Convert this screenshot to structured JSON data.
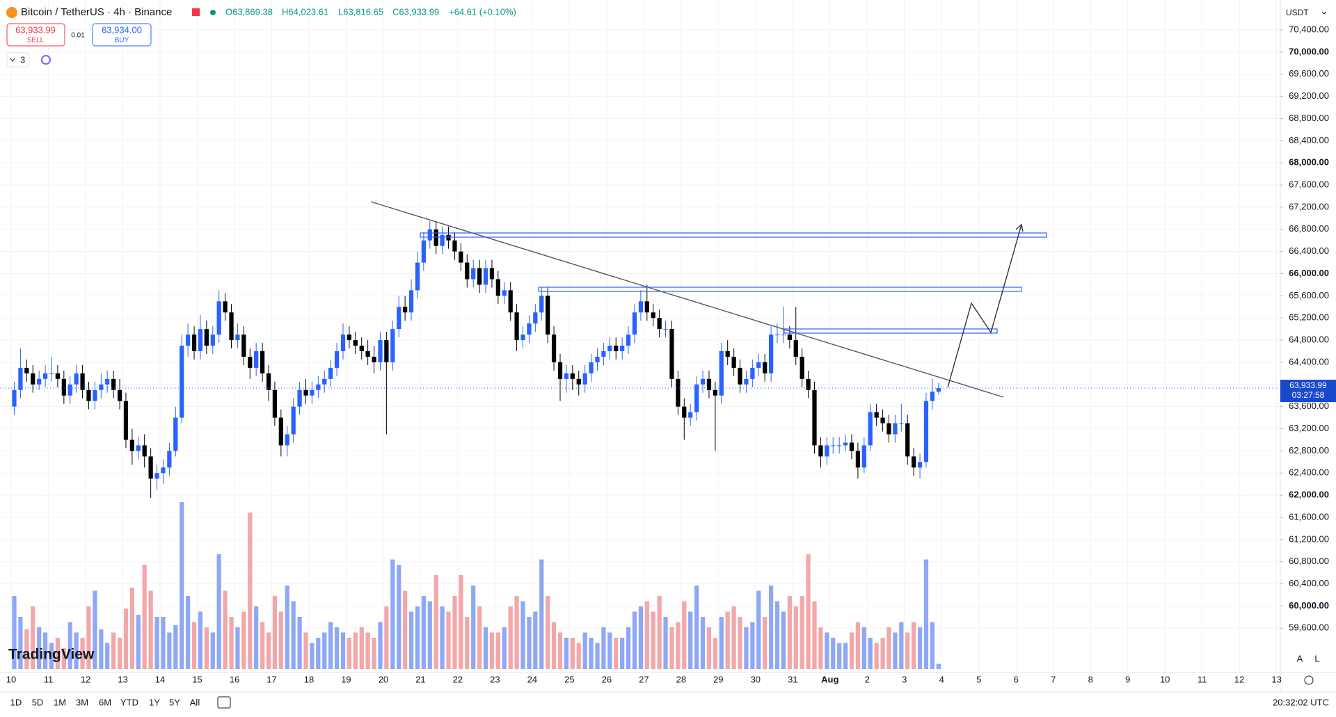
{
  "header": {
    "symbol": "Bitcoin / TetherUS · 4h · Binance",
    "open": "O63,869.38",
    "high": "H64,023.61",
    "low": "L63,816.65",
    "close": "C63,933.99",
    "change": "+64.61 (+0.10%)"
  },
  "trade": {
    "sell_price": "63,933.99",
    "sell_label": "SELL",
    "spread": "0.01",
    "buy_price": "63,934.00",
    "buy_label": "BUY"
  },
  "indicators_count": "3",
  "currency": "USDT",
  "price_tag": {
    "value": 63933.99,
    "label": "63,933.99",
    "countdown": "03:27:58"
  },
  "range_buttons": [
    "1D",
    "5D",
    "1M",
    "3M",
    "6M",
    "YTD",
    "1Y",
    "5Y",
    "All"
  ],
  "clock": "20:32:02 UTC",
  "scale_buttons": [
    "A",
    "L"
  ],
  "brand": "TradingView",
  "chart_data": {
    "type": "candlestick",
    "up_color": "#2962ff",
    "down_color": "#000000",
    "volume_up_color": "#8fa8f5",
    "volume_down_color": "#f2a7a9",
    "grid": true,
    "x": [
      10.083,
      10.25,
      10.417,
      10.583,
      10.75,
      10.917,
      11.083,
      11.25,
      11.417,
      11.583,
      11.75,
      11.917,
      12.083,
      12.25,
      12.417,
      12.583,
      12.75,
      12.917,
      13.083,
      13.25,
      13.417,
      13.583,
      13.75,
      13.917,
      14.083,
      14.25,
      14.417,
      14.583,
      14.75,
      14.917,
      15.083,
      15.25,
      15.417,
      15.583,
      15.75,
      15.917,
      16.083,
      16.25,
      16.417,
      16.583,
      16.75,
      16.917,
      17.083,
      17.25,
      17.417,
      17.583,
      17.75,
      17.917,
      18.083,
      18.25,
      18.417,
      18.583,
      18.75,
      18.917,
      19.083,
      19.25,
      19.417,
      19.583,
      19.75,
      19.917,
      20.083,
      20.25,
      20.417,
      20.583,
      20.75,
      20.917,
      21.083,
      21.25,
      21.417,
      21.583,
      21.75,
      21.917,
      22.083,
      22.25,
      22.417,
      22.583,
      22.75,
      22.917,
      23.083,
      23.25,
      23.417,
      23.583,
      23.75,
      23.917,
      24.083,
      24.25,
      24.417,
      24.583,
      24.75,
      24.917,
      25.083,
      25.25,
      25.417,
      25.583,
      25.75,
      25.917,
      26.083,
      26.25,
      26.417,
      26.583,
      26.75,
      26.917,
      27.083,
      27.25,
      27.417,
      27.583,
      27.75,
      27.917,
      28.083,
      28.25,
      28.417,
      28.583,
      28.75,
      28.917,
      29.083,
      29.25,
      29.417,
      29.583,
      29.75,
      29.917,
      30.083,
      30.25,
      30.417,
      30.583,
      30.75,
      30.917,
      31.083,
      31.25,
      31.417,
      31.583,
      31.75,
      31.917,
      32.083,
      32.25,
      32.417,
      32.583,
      32.75,
      32.917,
      33.083,
      33.25,
      33.417,
      33.583,
      33.75,
      33.917,
      34.083,
      34.25,
      34.417,
      34.583,
      34.75,
      34.917
    ],
    "open": [
      63600,
      63900,
      64300,
      64200,
      64000,
      64100,
      64200,
      64200,
      64100,
      63800,
      64000,
      64200,
      63900,
      63700,
      63900,
      64000,
      64100,
      63900,
      63700,
      63000,
      62800,
      62900,
      62700,
      62300,
      62400,
      62500,
      62800,
      63400,
      64700,
      64900,
      64600,
      65000,
      64700,
      64900,
      65500,
      65300,
      64800,
      64900,
      64500,
      64300,
      64600,
      64200,
      63900,
      63400,
      62900,
      63100,
      63600,
      63900,
      63800,
      63900,
      64000,
      64100,
      64300,
      64600,
      64900,
      64800,
      64700,
      64600,
      64500,
      64400,
      64800,
      64400,
      65000,
      65400,
      65300,
      65700,
      66200,
      66600,
      66800,
      66500,
      66700,
      66600,
      66400,
      66200,
      65900,
      66100,
      65800,
      66100,
      65900,
      65600,
      65700,
      65300,
      64800,
      64900,
      65100,
      65300,
      65600,
      64900,
      64400,
      64100,
      64200,
      64100,
      64000,
      64200,
      64400,
      64500,
      64600,
      64700,
      64600,
      64700,
      64900,
      65300,
      65500,
      65300,
      65200,
      65000,
      65000,
      64100,
      63600,
      63400,
      63500,
      64000,
      64100,
      63900,
      63800,
      64600,
      64500,
      64300,
      64000,
      64100,
      64300,
      64400,
      64200,
      64900,
      64900,
      64900,
      64800,
      64500,
      64100,
      63900,
      62900,
      62700,
      62900,
      62900,
      62900,
      62950,
      62800,
      62500,
      62900,
      63500,
      63400,
      63300,
      63100,
      63300,
      63300,
      62700,
      62500,
      62600,
      63700,
      63869.38
    ],
    "high": [
      64050,
      64650,
      64450,
      64350,
      64250,
      64350,
      64500,
      64350,
      64250,
      64150,
      64350,
      64350,
      64050,
      64050,
      64200,
      64250,
      64250,
      64100,
      63850,
      63200,
      63050,
      63100,
      62850,
      62550,
      62650,
      62950,
      63600,
      64900,
      65100,
      65050,
      65250,
      65150,
      65050,
      65700,
      65650,
      65450,
      65100,
      65050,
      64650,
      64750,
      64750,
      64350,
      64050,
      63550,
      63250,
      63750,
      64050,
      64100,
      64050,
      64150,
      64250,
      64450,
      64750,
      65100,
      65050,
      64950,
      64850,
      64800,
      64700,
      64950,
      64950,
      65150,
      65600,
      65600,
      65900,
      66400,
      66750,
      66950,
      66950,
      66850,
      66850,
      66750,
      66550,
      66350,
      66250,
      66250,
      66250,
      66250,
      66050,
      65850,
      65850,
      65450,
      65050,
      65250,
      65450,
      65750,
      65750,
      65050,
      64550,
      64350,
      64350,
      64250,
      64350,
      64550,
      64650,
      64750,
      64850,
      64850,
      64850,
      65050,
      65450,
      65700,
      65800,
      65450,
      65350,
      65150,
      65150,
      64250,
      63750,
      63650,
      64150,
      64250,
      64250,
      64050,
      64750,
      64800,
      64650,
      64450,
      64250,
      64450,
      64550,
      64550,
      65050,
      65100,
      65400,
      65050,
      65400,
      64650,
      64250,
      64050,
      63050,
      63050,
      63050,
      63050,
      63100,
      63100,
      62950,
      63050,
      63650,
      63650,
      63550,
      63450,
      63450,
      63650,
      63450,
      62850,
      62750,
      63850,
      64100,
      64023.61
    ],
    "low": [
      63450,
      63750,
      64050,
      63850,
      63900,
      63950,
      64050,
      63950,
      63650,
      63650,
      63850,
      63750,
      63550,
      63550,
      63750,
      63850,
      63750,
      63550,
      62850,
      62550,
      62650,
      62500,
      61950,
      62100,
      62200,
      62350,
      62700,
      63300,
      64500,
      64450,
      64450,
      64550,
      64550,
      64750,
      65150,
      64650,
      64650,
      64350,
      64100,
      64150,
      64050,
      63700,
      63250,
      62700,
      62700,
      62950,
      63450,
      63650,
      63650,
      63750,
      63850,
      63950,
      64150,
      64450,
      64650,
      64550,
      64450,
      64350,
      64200,
      64250,
      63100,
      64250,
      64850,
      65150,
      65150,
      65550,
      66050,
      66450,
      66350,
      66350,
      66450,
      66250,
      66050,
      65750,
      65750,
      65650,
      65650,
      65750,
      65450,
      65450,
      65150,
      64600,
      64650,
      64750,
      64950,
      65150,
      64750,
      64250,
      63700,
      63850,
      63900,
      63800,
      63850,
      64050,
      64250,
      64350,
      64450,
      64450,
      64450,
      64550,
      64750,
      65150,
      65150,
      65050,
      64850,
      64850,
      63950,
      63450,
      63000,
      63250,
      63350,
      63850,
      63750,
      62800,
      63650,
      64350,
      64150,
      63850,
      63850,
      63950,
      64150,
      64050,
      64050,
      64750,
      64750,
      64650,
      64350,
      63950,
      63750,
      62750,
      62500,
      62550,
      62750,
      62750,
      62800,
      62650,
      62300,
      62400,
      62800,
      63250,
      63150,
      62950,
      62950,
      63150,
      62550,
      62350,
      62300,
      62500,
      63550,
      63816.65
    ],
    "close": [
      63900,
      64300,
      64200,
      64000,
      64100,
      64200,
      64200,
      64100,
      63800,
      64000,
      64200,
      63900,
      63700,
      63900,
      64000,
      64100,
      63900,
      63700,
      63000,
      62800,
      62900,
      62700,
      62300,
      62400,
      62500,
      62800,
      63400,
      64700,
      64900,
      64600,
      65000,
      64700,
      64900,
      65500,
      65300,
      64800,
      64900,
      64500,
      64300,
      64600,
      64200,
      63900,
      63400,
      62900,
      63100,
      63600,
      63900,
      63800,
      63900,
      64000,
      64100,
      64300,
      64600,
      64900,
      64800,
      64700,
      64600,
      64500,
      64400,
      64800,
      64400,
      65000,
      65400,
      65300,
      65700,
      66200,
      66600,
      66800,
      66500,
      66700,
      66600,
      66400,
      66200,
      65900,
      66100,
      65800,
      66100,
      65900,
      65600,
      65700,
      65300,
      64800,
      64900,
      65100,
      65300,
      65600,
      64900,
      64400,
      64100,
      64200,
      64100,
      64000,
      64200,
      64400,
      64500,
      64600,
      64700,
      64600,
      64700,
      64900,
      65300,
      65500,
      65300,
      65200,
      65000,
      65000,
      64100,
      63600,
      63400,
      63500,
      64000,
      64100,
      63900,
      63800,
      64600,
      64500,
      64300,
      64000,
      64100,
      64300,
      64400,
      64200,
      64900,
      64900,
      64900,
      64800,
      64500,
      64100,
      63900,
      62900,
      62700,
      62900,
      62900,
      62900,
      62950,
      62800,
      62500,
      62900,
      63500,
      63400,
      63300,
      63100,
      63300,
      63300,
      62700,
      62500,
      62600,
      63700,
      63869.38,
      63933.99
    ],
    "volume": [
      700,
      500,
      380,
      600,
      400,
      350,
      250,
      300,
      200,
      450,
      350,
      300,
      600,
      750,
      380,
      250,
      350,
      300,
      580,
      780,
      520,
      1000,
      750,
      500,
      500,
      350,
      420,
      1600,
      700,
      450,
      550,
      400,
      350,
      1100,
      750,
      500,
      400,
      550,
      1500,
      600,
      450,
      350,
      700,
      550,
      800,
      650,
      500,
      350,
      250,
      300,
      350,
      450,
      400,
      350,
      300,
      350,
      400,
      350,
      300,
      450,
      600,
      1050,
      1000,
      750,
      550,
      600,
      700,
      650,
      900,
      600,
      550,
      700,
      900,
      500,
      800,
      600,
      400,
      350,
      350,
      400,
      600,
      700,
      650,
      500,
      550,
      1050,
      700,
      450,
      350,
      300,
      300,
      250,
      350,
      300,
      250,
      400,
      350,
      300,
      300,
      400,
      550,
      600,
      650,
      550,
      700,
      500,
      400,
      450,
      650,
      550,
      800,
      500,
      400,
      300,
      500,
      550,
      600,
      500,
      400,
      450,
      750,
      500,
      800,
      650,
      550,
      700,
      600,
      700,
      1100,
      650,
      400,
      350,
      300,
      250,
      250,
      350,
      450,
      400,
      300,
      250,
      300,
      400,
      350,
      450,
      350,
      450,
      400,
      1050,
      450,
      50
    ],
    "xlim": [
      9.7,
      44.1
    ],
    "xticks": [
      10,
      11,
      12,
      13,
      14,
      15,
      16,
      17,
      18,
      19,
      20,
      21,
      22,
      23,
      24,
      25,
      26,
      27,
      28,
      29,
      30,
      31,
      {
        "value": 32,
        "label": "Aug"
      },
      {
        "value": 33,
        "label": "2"
      },
      {
        "value": 34,
        "label": "3"
      },
      {
        "value": 35,
        "label": "4"
      },
      {
        "value": 36,
        "label": "5"
      },
      {
        "value": 37,
        "label": "6"
      },
      {
        "value": 38,
        "label": "7"
      },
      {
        "value": 39,
        "label": "8"
      },
      {
        "value": 40,
        "label": "9"
      },
      {
        "value": 41,
        "label": "10"
      },
      {
        "value": 42,
        "label": "11"
      },
      {
        "value": 43,
        "label": "12"
      },
      {
        "value": 44,
        "label": "13"
      }
    ],
    "ylim": [
      58800,
      70940
    ],
    "yticks": [
      {
        "value": 59600,
        "label": "59,600.00"
      },
      {
        "value": 60000,
        "label": "60,000.00"
      },
      {
        "value": 60400,
        "label": "60,400.00"
      },
      {
        "value": 60800,
        "label": "60,800.00"
      },
      {
        "value": 61200,
        "label": "61,200.00"
      },
      {
        "value": 61600,
        "label": "61,600.00"
      },
      {
        "value": 62000,
        "label": "62,000.00"
      },
      {
        "value": 62400,
        "label": "62,400.00"
      },
      {
        "value": 62800,
        "label": "62,800.00"
      },
      {
        "value": 63200,
        "label": "63,200.00"
      },
      {
        "value": 63600,
        "label": "63,600.00"
      },
      {
        "value": 64000,
        "label": "64,000.00"
      },
      {
        "value": 64400,
        "label": "64,400.00"
      },
      {
        "value": 64800,
        "label": "64,800.00"
      },
      {
        "value": 65200,
        "label": "65,200.00"
      },
      {
        "value": 65600,
        "label": "65,600.00"
      },
      {
        "value": 66000,
        "label": "66,000.00"
      },
      {
        "value": 66400,
        "label": "66,400.00"
      },
      {
        "value": 66800,
        "label": "66,800.00"
      },
      {
        "value": 67200,
        "label": "67,200.00"
      },
      {
        "value": 67600,
        "label": "67,600.00"
      },
      {
        "value": 68000,
        "label": "68,000.00"
      },
      {
        "value": 68400,
        "label": "68,400.00"
      },
      {
        "value": 68800,
        "label": "68,800.00"
      },
      {
        "value": 69200,
        "label": "69,200.00"
      },
      {
        "value": 69600,
        "label": "69,600.00"
      },
      {
        "value": 70000,
        "label": "70,000.00"
      },
      {
        "value": 70400,
        "label": "70,400.00"
      }
    ]
  }
}
